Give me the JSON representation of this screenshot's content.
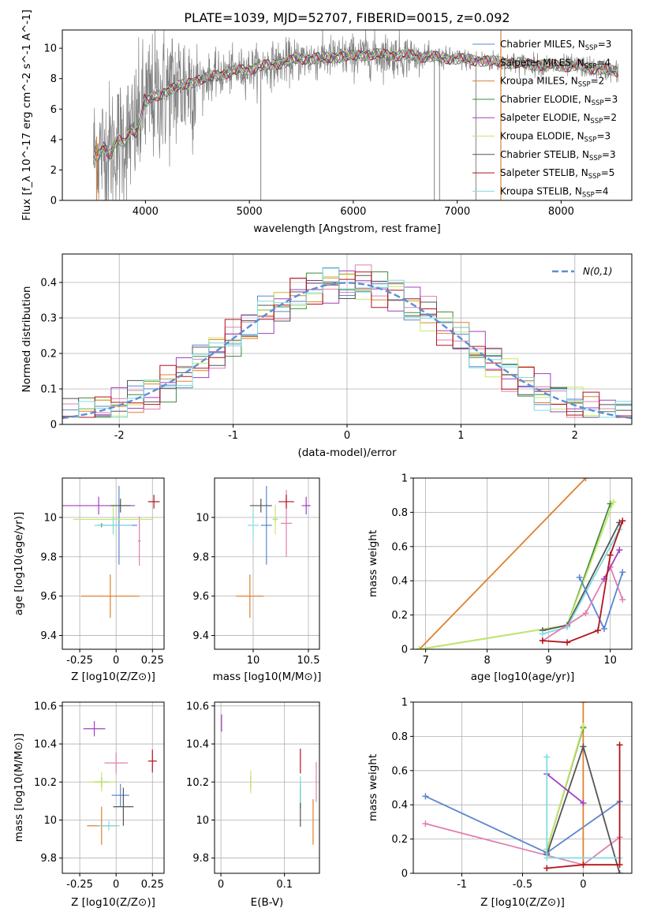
{
  "title": "PLATE=1039, MJD=52707, FIBERID=0015, z=0.092",
  "colors": {
    "Chabrier MILES": "#5b86d1",
    "Salpeter MILES": "#e07fb0",
    "Kroupa MILES": "#e0812e",
    "Chabrier ELODIE": "#3e8a3e",
    "Salpeter ELODIE": "#a23fc0",
    "Kroupa ELODIE": "#c6e86a",
    "Chabrier STELIB": "#555555",
    "Salpeter STELIB": "#b5131b",
    "Kroupa STELIB": "#7fdce0",
    "data": "#808080",
    "gauss": "#5b8ed6"
  },
  "chart_data": [
    {
      "id": "spectrum",
      "type": "line",
      "xlabel": "wavelength [Angstrom, rest frame]",
      "ylabel": "Flux [f_λ 10^-17 erg cm^-2 s^-1 A^-1]",
      "xlim": [
        3200,
        8680
      ],
      "ylim": [
        0,
        11.2
      ],
      "xticks": [
        4000,
        5000,
        6000,
        7000,
        8000
      ],
      "yticks": [
        0,
        2,
        4,
        6,
        8,
        10
      ],
      "grid": false,
      "legend_position": "right",
      "legend": [
        {
          "label": "Chabrier MILES",
          "n": "3"
        },
        {
          "label": "Salpeter MILES",
          "n": "4"
        },
        {
          "label": "Kroupa MILES",
          "n": "2"
        },
        {
          "label": "Chabrier ELODIE",
          "n": "3"
        },
        {
          "label": "Salpeter ELODIE",
          "n": "2"
        },
        {
          "label": "Kroupa ELODIE",
          "n": "3"
        },
        {
          "label": "Chabrier STELIB",
          "n": "3"
        },
        {
          "label": "Salpeter STELIB",
          "n": "5"
        },
        {
          "label": "Kroupa STELIB",
          "n": "4"
        }
      ],
      "legend_nssp_label": "N",
      "legend_nssp_sub": "SSP",
      "continuum": [
        [
          3500,
          3.0
        ],
        [
          3700,
          3.5
        ],
        [
          3900,
          4.6
        ],
        [
          4000,
          6.4
        ],
        [
          4200,
          7.2
        ],
        [
          4500,
          7.9
        ],
        [
          4800,
          8.4
        ],
        [
          5200,
          8.9
        ],
        [
          5500,
          9.3
        ],
        [
          5800,
          9.4
        ],
        [
          6200,
          9.6
        ],
        [
          6600,
          9.5
        ],
        [
          7000,
          9.3
        ],
        [
          7400,
          9.1
        ],
        [
          7800,
          8.9
        ],
        [
          8200,
          8.8
        ],
        [
          8500,
          8.5
        ]
      ],
      "spikes": [
        [
          5110,
          0
        ],
        [
          6780,
          0
        ],
        [
          6830,
          0
        ],
        [
          7180,
          0
        ],
        [
          7420,
          0
        ]
      ]
    },
    {
      "id": "residuals",
      "type": "histogram",
      "xlabel": "(data-model)/error",
      "ylabel": "Normed distribution",
      "xlim": [
        -2.5,
        2.5
      ],
      "ylim": [
        0,
        0.48
      ],
      "xticks": [
        -2,
        -1,
        0,
        1,
        2
      ],
      "yticks": [
        0.0,
        0.1,
        0.2,
        0.3,
        0.4
      ],
      "grid": true,
      "legend_position": "top-right",
      "gauss_label": "N(0,1)",
      "bins": 35
    },
    {
      "id": "age_vs_Z",
      "type": "scatter",
      "xlabel": "Z [log10(Z/Z⊙)]",
      "ylabel": "age  [log10(age/yr)]",
      "xlim": [
        -0.37,
        0.33
      ],
      "ylim": [
        9.33,
        10.2
      ],
      "xticks": [
        -0.25,
        0.0,
        0.25
      ],
      "yticks": [
        9.4,
        9.6,
        9.8,
        10.0
      ],
      "grid": true,
      "points": [
        {
          "m": "Chabrier MILES",
          "x": 0.02,
          "xe": 0.25,
          "y": 9.96,
          "ye": 0.4
        },
        {
          "m": "Salpeter MILES",
          "x": 0.16,
          "xe": 0.02,
          "y": 9.88,
          "ye": 0.25
        },
        {
          "m": "Kroupa MILES",
          "x": -0.04,
          "xe": 0.4,
          "y": 9.6,
          "ye": 0.22
        },
        {
          "m": "Chabrier ELODIE",
          "x": -0.1,
          "xe": 0.05,
          "y": 9.96,
          "ye": 0.02
        },
        {
          "m": "Salpeter ELODIE",
          "x": -0.12,
          "xe": 0.5,
          "y": 10.06,
          "ye": 0.09
        },
        {
          "m": "Kroupa ELODIE",
          "x": -0.02,
          "xe": 0.55,
          "y": 9.99,
          "ye": 0.15
        },
        {
          "m": "Chabrier STELIB",
          "x": 0.03,
          "xe": 0.14,
          "y": 10.06,
          "ye": 0.07
        },
        {
          "m": "Salpeter STELIB",
          "x": 0.26,
          "xe": 0.08,
          "y": 10.08,
          "ye": 0.07
        },
        {
          "m": "Kroupa STELIB",
          "x": -0.02,
          "xe": 0.26,
          "y": 9.96,
          "ye": 0.09
        }
      ]
    },
    {
      "id": "age_vs_mass",
      "type": "scatter",
      "xlabel": "mass [log10(M/M⊙)]",
      "ylabel": "",
      "xlim": [
        9.65,
        10.6
      ],
      "ylim": [
        9.33,
        10.2
      ],
      "xticks": [
        10.0,
        10.5
      ],
      "yticks": [
        9.4,
        9.6,
        9.8,
        10.0
      ],
      "grid": true,
      "points": [
        {
          "m": "Chabrier MILES",
          "x": 10.12,
          "xe": 0.1,
          "y": 9.96,
          "ye": 0.4
        },
        {
          "m": "Salpeter MILES",
          "x": 10.3,
          "xe": 0.1,
          "y": 9.97,
          "ye": 0.34
        },
        {
          "m": "Kroupa MILES",
          "x": 9.97,
          "xe": 0.25,
          "y": 9.6,
          "ye": 0.22
        },
        {
          "m": "Chabrier ELODIE",
          "x": 10.2,
          "xe": 0.05,
          "y": 9.99,
          "ye": 0.02
        },
        {
          "m": "Salpeter ELODIE",
          "x": 10.48,
          "xe": 0.08,
          "y": 10.06,
          "ye": 0.09
        },
        {
          "m": "Kroupa ELODIE",
          "x": 10.2,
          "xe": 0.05,
          "y": 9.99,
          "ye": 0.15
        },
        {
          "m": "Chabrier STELIB",
          "x": 10.07,
          "xe": 0.2,
          "y": 10.06,
          "ye": 0.07
        },
        {
          "m": "Salpeter STELIB",
          "x": 10.3,
          "xe": 0.14,
          "y": 10.08,
          "ye": 0.07
        },
        {
          "m": "Kroupa STELIB",
          "x": 10.0,
          "xe": 0.1,
          "y": 9.96,
          "ye": 0.16
        }
      ]
    },
    {
      "id": "weight_vs_age",
      "type": "line",
      "xlabel": "age  [log10(age/yr)]",
      "ylabel": "mass weight",
      "xlim": [
        6.8,
        10.35
      ],
      "ylim": [
        0,
        1.0
      ],
      "xticks": [
        7,
        8,
        9,
        10
      ],
      "yticks": [
        0.0,
        0.2,
        0.4,
        0.6,
        0.8,
        1.0
      ],
      "grid": true,
      "series": [
        {
          "m": "Kroupa MILES",
          "x": [
            6.9,
            9.6
          ],
          "y": [
            0.0,
            1.0
          ]
        },
        {
          "m": "Chabrier ELODIE",
          "x": [
            6.9,
            9.3,
            10.0
          ],
          "y": [
            0.0,
            0.14,
            0.85
          ]
        },
        {
          "m": "Kroupa ELODIE",
          "x": [
            6.9,
            9.3,
            10.05
          ],
          "y": [
            0.0,
            0.14,
            0.86
          ]
        },
        {
          "m": "Chabrier STELIB",
          "x": [
            8.9,
            9.3,
            10.15
          ],
          "y": [
            0.11,
            0.14,
            0.74
          ]
        },
        {
          "m": "Kroupa STELIB",
          "x": [
            8.9,
            9.3,
            10.15
          ],
          "y": [
            0.09,
            0.13,
            0.7
          ]
        },
        {
          "m": "Chabrier MILES",
          "x": [
            9.5,
            9.9,
            10.2
          ],
          "y": [
            0.42,
            0.12,
            0.45
          ]
        },
        {
          "m": "Salpeter MILES",
          "x": [
            8.9,
            9.6,
            10.0,
            10.2
          ],
          "y": [
            0.05,
            0.21,
            0.48,
            0.29
          ]
        },
        {
          "m": "Salpeter ELODIE",
          "x": [
            9.9,
            10.15
          ],
          "y": [
            0.41,
            0.58
          ]
        },
        {
          "m": "Salpeter STELIB",
          "x": [
            8.9,
            9.3,
            9.8,
            10.0,
            10.2
          ],
          "y": [
            0.05,
            0.04,
            0.11,
            0.55,
            0.75
          ]
        }
      ]
    },
    {
      "id": "mass_vs_Z",
      "type": "scatter",
      "xlabel": "Z [log10(Z/Z⊙)]",
      "ylabel": "mass [log10(M/M⊙)]",
      "xlim": [
        -0.37,
        0.33
      ],
      "ylim": [
        9.72,
        10.62
      ],
      "xticks": [
        -0.25,
        0.0,
        0.25
      ],
      "yticks": [
        9.8,
        10.0,
        10.2,
        10.4,
        10.6
      ],
      "grid": true,
      "points": [
        {
          "m": "Chabrier MILES",
          "x": 0.03,
          "xe": 0.12,
          "y": 10.13,
          "ye": 0.12
        },
        {
          "m": "Salpeter MILES",
          "x": 0.0,
          "xe": 0.16,
          "y": 10.3,
          "ye": 0.11
        },
        {
          "m": "Kroupa MILES",
          "x": -0.1,
          "xe": 0.2,
          "y": 9.97,
          "ye": 0.2
        },
        {
          "m": "Chabrier ELODIE",
          "x": -0.1,
          "xe": 0.1,
          "y": 10.2,
          "ye": 0.05
        },
        {
          "m": "Salpeter ELODIE",
          "x": -0.15,
          "xe": 0.15,
          "y": 10.48,
          "ye": 0.08
        },
        {
          "m": "Kroupa ELODIE",
          "x": -0.1,
          "xe": 0.2,
          "y": 10.2,
          "ye": 0.1
        },
        {
          "m": "Chabrier STELIB",
          "x": 0.05,
          "xe": 0.14,
          "y": 10.07,
          "ye": 0.2
        },
        {
          "m": "Salpeter STELIB",
          "x": 0.25,
          "xe": 0.06,
          "y": 10.31,
          "ye": 0.12
        },
        {
          "m": "Kroupa STELIB",
          "x": -0.05,
          "xe": 0.15,
          "y": 9.97,
          "ye": 0.05
        }
      ]
    },
    {
      "id": "mass_vs_ebv",
      "type": "scatter",
      "xlabel": "E(B-V)",
      "ylabel": "",
      "xlim": [
        -0.01,
        0.155
      ],
      "ylim": [
        9.72,
        10.62
      ],
      "xticks": [
        0.0,
        0.1
      ],
      "yticks": [
        9.8,
        10.0,
        10.2,
        10.4,
        10.6
      ],
      "grid": true,
      "points": [
        {
          "m": "Chabrier MILES",
          "x": 0.125,
          "xe": 0.0,
          "y": 10.13,
          "ye": 0.14
        },
        {
          "m": "Salpeter MILES",
          "x": 0.15,
          "xe": 0.0,
          "y": 10.2,
          "ye": 0.21
        },
        {
          "m": "Kroupa MILES",
          "x": 0.145,
          "xe": 0.0,
          "y": 9.99,
          "ye": 0.24
        },
        {
          "m": "Chabrier ELODIE",
          "x": 0.047,
          "xe": 0.0,
          "y": 10.2,
          "ye": 0.06
        },
        {
          "m": "Salpeter ELODIE",
          "x": 0.001,
          "xe": 0.0,
          "y": 10.51,
          "ye": 0.09
        },
        {
          "m": "Kroupa ELODIE",
          "x": 0.047,
          "xe": 0.0,
          "y": 10.2,
          "ye": 0.12
        },
        {
          "m": "Chabrier STELIB",
          "x": 0.125,
          "xe": 0.0,
          "y": 10.07,
          "ye": 0.21
        },
        {
          "m": "Salpeter STELIB",
          "x": 0.125,
          "xe": 0.0,
          "y": 10.31,
          "ye": 0.13
        },
        {
          "m": "Kroupa STELIB",
          "x": 0.125,
          "xe": 0.0,
          "y": 10.16,
          "ye": 0.14
        }
      ]
    },
    {
      "id": "weight_vs_Z",
      "type": "line",
      "xlabel": "Z [log10(Z/Z⊙)]",
      "ylabel": "mass weight",
      "xlim": [
        -1.4,
        0.4
      ],
      "ylim": [
        0,
        1.0
      ],
      "xticks": [
        -1.0,
        -0.5,
        0.0
      ],
      "yticks": [
        0.0,
        0.2,
        0.4,
        0.6,
        0.8,
        1.0
      ],
      "grid": true,
      "series": [
        {
          "m": "Chabrier MILES",
          "x": [
            -1.3,
            -0.3,
            0.3
          ],
          "y": [
            0.45,
            0.12,
            0.42
          ]
        },
        {
          "m": "Salpeter MILES",
          "x": [
            -1.3,
            0.0,
            0.3
          ],
          "y": [
            0.29,
            0.05,
            0.21
          ]
        },
        {
          "m": "Kroupa MILES",
          "x": [
            0.0,
            0.0
          ],
          "y": [
            1.0,
            0.05
          ]
        },
        {
          "m": "Chabrier ELODIE",
          "x": [
            -0.3,
            0.0
          ],
          "y": [
            0.14,
            0.85
          ]
        },
        {
          "m": "Kroupa ELODIE",
          "x": [
            -0.3,
            0.0
          ],
          "y": [
            0.14,
            0.86
          ]
        },
        {
          "m": "Salpeter ELODIE",
          "x": [
            -0.3,
            0.0
          ],
          "y": [
            0.58,
            0.41
          ]
        },
        {
          "m": "Chabrier STELIB",
          "x": [
            -0.3,
            0.0,
            0.3
          ],
          "y": [
            0.11,
            0.74,
            0.0
          ]
        },
        {
          "m": "Kroupa STELIB",
          "x": [
            -0.3,
            -0.3,
            0.3
          ],
          "y": [
            0.68,
            0.09,
            0.09
          ]
        },
        {
          "m": "Salpeter STELIB",
          "x": [
            -0.3,
            0.0,
            0.3,
            0.3
          ],
          "y": [
            0.03,
            0.05,
            0.05,
            0.75
          ]
        }
      ]
    }
  ]
}
